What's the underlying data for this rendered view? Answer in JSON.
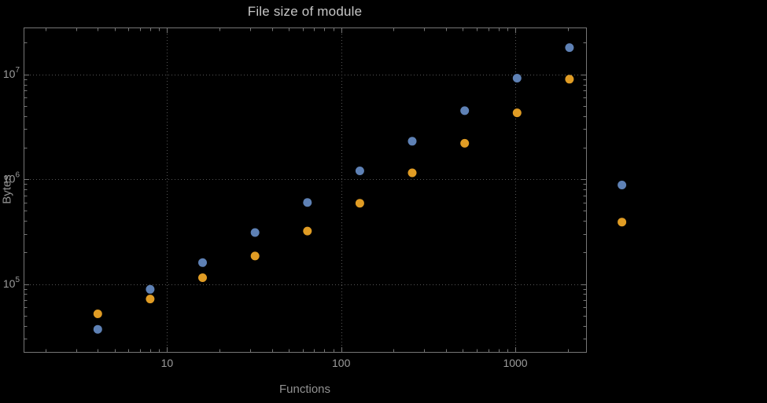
{
  "colors": {
    "background": "#000000",
    "frame": "#767676",
    "grid": "#565656",
    "tick_labels": "#9c9c9c",
    "title": "#c7c7c7",
    "axis_labels": "#929292"
  },
  "chart_data": {
    "type": "scatter",
    "title": "File size of module",
    "xlabel": "Functions",
    "ylabel": "Bytes",
    "x_scale": "log",
    "y_scale": "log",
    "xlim": [
      1.5,
      2550
    ],
    "ylim": [
      22500,
      28000000
    ],
    "x_ticks": [
      10,
      100,
      1000
    ],
    "x_tick_labels": [
      "10",
      "100",
      "1000"
    ],
    "y_ticks": [
      100000,
      1000000,
      10000000
    ],
    "y_tick_labels": [
      "10^5",
      "10^6",
      "10^7"
    ],
    "grid": true,
    "legend": null,
    "series": [
      {
        "name": "series-blue",
        "color": "#5e81b5",
        "points": [
          [
            4,
            37000
          ],
          [
            8,
            89000
          ],
          [
            16,
            160000
          ],
          [
            32,
            310000
          ],
          [
            64,
            600000
          ],
          [
            128,
            1200000
          ],
          [
            256,
            2300000
          ],
          [
            512,
            4500000
          ],
          [
            1024,
            9200000
          ],
          [
            2048,
            18000000
          ],
          [
            4096,
            880000
          ]
        ]
      },
      {
        "name": "series-orange",
        "color": "#e09c24",
        "points": [
          [
            4,
            52000
          ],
          [
            8,
            72000
          ],
          [
            16,
            115000
          ],
          [
            32,
            185000
          ],
          [
            64,
            320000
          ],
          [
            128,
            590000
          ],
          [
            256,
            1150000
          ],
          [
            512,
            2200000
          ],
          [
            1024,
            4300000
          ],
          [
            2048,
            9000000
          ],
          [
            4096,
            390000
          ]
        ]
      }
    ]
  }
}
